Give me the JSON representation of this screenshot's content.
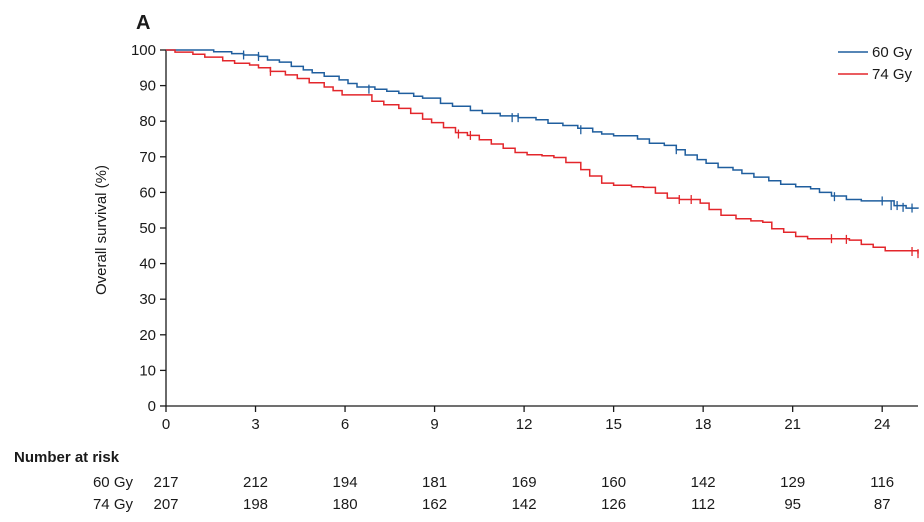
{
  "figure": {
    "panel_label": "A"
  },
  "chart_data": {
    "type": "line",
    "title": "",
    "xlabel": "",
    "ylabel": "Overall survival (%)",
    "xlim": [
      0,
      25.2
    ],
    "ylim": [
      0,
      100
    ],
    "x_ticks": [
      0,
      3,
      6,
      9,
      12,
      15,
      18,
      21,
      24
    ],
    "y_ticks": [
      0,
      10,
      20,
      30,
      40,
      50,
      60,
      70,
      80,
      90,
      100
    ],
    "grid": false,
    "legend_position": "top-right",
    "colors": {
      "60 Gy": "#1f5e9e",
      "74 Gy": "#e3262b"
    },
    "series": [
      {
        "name": "60 Gy",
        "color": "#1f5e9e",
        "points": [
          [
            0,
            100
          ],
          [
            1.2,
            100
          ],
          [
            1.6,
            99.5
          ],
          [
            2.2,
            99
          ],
          [
            2.6,
            98.6
          ],
          [
            3.1,
            98.2
          ],
          [
            3.4,
            97.2
          ],
          [
            3.8,
            96.6
          ],
          [
            4.2,
            95.4
          ],
          [
            4.6,
            94.4
          ],
          [
            4.9,
            93.6
          ],
          [
            5.3,
            92.6
          ],
          [
            5.8,
            91.6
          ],
          [
            6.1,
            90.6
          ],
          [
            6.4,
            89.6
          ],
          [
            7.0,
            89.0
          ],
          [
            7.4,
            88.4
          ],
          [
            7.8,
            87.8
          ],
          [
            8.3,
            87.0
          ],
          [
            8.6,
            86.5
          ],
          [
            9.2,
            85.0
          ],
          [
            9.6,
            84.2
          ],
          [
            10.2,
            83.0
          ],
          [
            10.6,
            82.2
          ],
          [
            11.2,
            81.5
          ],
          [
            11.8,
            81.0
          ],
          [
            12.4,
            80.4
          ],
          [
            12.8,
            79.4
          ],
          [
            13.3,
            78.8
          ],
          [
            13.8,
            78.0
          ],
          [
            14.3,
            77.0
          ],
          [
            14.6,
            76.4
          ],
          [
            15.0,
            75.9
          ],
          [
            15.5,
            75.9
          ],
          [
            15.8,
            75.0
          ],
          [
            16.2,
            73.8
          ],
          [
            16.7,
            73.2
          ],
          [
            17.1,
            72.0
          ],
          [
            17.4,
            70.5
          ],
          [
            17.8,
            69.2
          ],
          [
            18.1,
            68.2
          ],
          [
            18.5,
            67.0
          ],
          [
            19.0,
            66.3
          ],
          [
            19.3,
            65.3
          ],
          [
            19.7,
            64.3
          ],
          [
            20.2,
            63.3
          ],
          [
            20.6,
            62.3
          ],
          [
            21.1,
            61.6
          ],
          [
            21.6,
            61.0
          ],
          [
            21.9,
            60.0
          ],
          [
            22.3,
            59.0
          ],
          [
            22.8,
            58.0
          ],
          [
            23.3,
            57.6
          ],
          [
            24.1,
            57.6
          ],
          [
            24.4,
            56.3
          ],
          [
            24.8,
            55.6
          ],
          [
            25.2,
            55.4
          ]
        ],
        "censored": [
          [
            2.6,
            98.6
          ],
          [
            3.1,
            98.2
          ],
          [
            6.8,
            89.0
          ],
          [
            11.6,
            81.0
          ],
          [
            11.8,
            81.0
          ],
          [
            13.9,
            77.6
          ],
          [
            17.1,
            72.0
          ],
          [
            22.4,
            58.8
          ],
          [
            24.0,
            57.6
          ],
          [
            24.3,
            56.3
          ],
          [
            24.5,
            56.3
          ],
          [
            24.7,
            55.8
          ],
          [
            25.0,
            55.6
          ]
        ]
      },
      {
        "name": "74 Gy",
        "color": "#e3262b",
        "points": [
          [
            0,
            100
          ],
          [
            0.3,
            99.4
          ],
          [
            0.9,
            98.8
          ],
          [
            1.3,
            98.0
          ],
          [
            1.9,
            97.0
          ],
          [
            2.3,
            96.3
          ],
          [
            2.8,
            95.8
          ],
          [
            3.1,
            95.0
          ],
          [
            3.5,
            94.0
          ],
          [
            4.0,
            93.0
          ],
          [
            4.4,
            92.0
          ],
          [
            4.8,
            90.8
          ],
          [
            5.3,
            89.6
          ],
          [
            5.6,
            88.6
          ],
          [
            5.9,
            87.4
          ],
          [
            6.6,
            87.4
          ],
          [
            6.9,
            85.6
          ],
          [
            7.3,
            84.6
          ],
          [
            7.8,
            83.6
          ],
          [
            8.2,
            82.2
          ],
          [
            8.6,
            80.6
          ],
          [
            8.9,
            79.6
          ],
          [
            9.3,
            78.2
          ],
          [
            9.7,
            76.8
          ],
          [
            10.1,
            76.0
          ],
          [
            10.5,
            74.8
          ],
          [
            10.9,
            73.6
          ],
          [
            11.3,
            72.4
          ],
          [
            11.7,
            71.2
          ],
          [
            12.1,
            70.6
          ],
          [
            12.6,
            70.3
          ],
          [
            13.0,
            69.8
          ],
          [
            13.4,
            68.4
          ],
          [
            13.9,
            66.4
          ],
          [
            14.2,
            64.6
          ],
          [
            14.6,
            62.6
          ],
          [
            15.0,
            62.0
          ],
          [
            15.6,
            61.6
          ],
          [
            16.0,
            61.4
          ],
          [
            16.4,
            59.8
          ],
          [
            16.8,
            58.4
          ],
          [
            17.2,
            58.0
          ],
          [
            17.6,
            58.0
          ],
          [
            17.9,
            57.0
          ],
          [
            18.2,
            55.2
          ],
          [
            18.6,
            53.6
          ],
          [
            19.1,
            52.6
          ],
          [
            19.6,
            52.0
          ],
          [
            20.0,
            51.6
          ],
          [
            20.3,
            49.8
          ],
          [
            20.7,
            48.8
          ],
          [
            21.1,
            47.6
          ],
          [
            21.5,
            47.0
          ],
          [
            22.4,
            47.0
          ],
          [
            22.9,
            46.6
          ],
          [
            23.3,
            45.4
          ],
          [
            23.7,
            44.6
          ],
          [
            24.1,
            43.6
          ],
          [
            24.9,
            43.6
          ],
          [
            25.2,
            42.8
          ]
        ],
        "censored": [
          [
            3.5,
            94.0
          ],
          [
            9.8,
            76.4
          ],
          [
            10.2,
            76.0
          ],
          [
            17.2,
            58.0
          ],
          [
            17.6,
            58.0
          ],
          [
            22.3,
            47.0
          ],
          [
            22.8,
            46.8
          ],
          [
            25.0,
            43.4
          ],
          [
            25.2,
            42.8
          ]
        ]
      }
    ]
  },
  "risk_table": {
    "heading": "Number at risk",
    "rows": [
      {
        "label": "60 Gy",
        "values": [
          "217",
          "212",
          "194",
          "181",
          "169",
          "160",
          "142",
          "129",
          "116"
        ]
      },
      {
        "label": "74 Gy",
        "values": [
          "207",
          "198",
          "180",
          "162",
          "142",
          "126",
          "112",
          "95",
          "87"
        ]
      }
    ]
  }
}
